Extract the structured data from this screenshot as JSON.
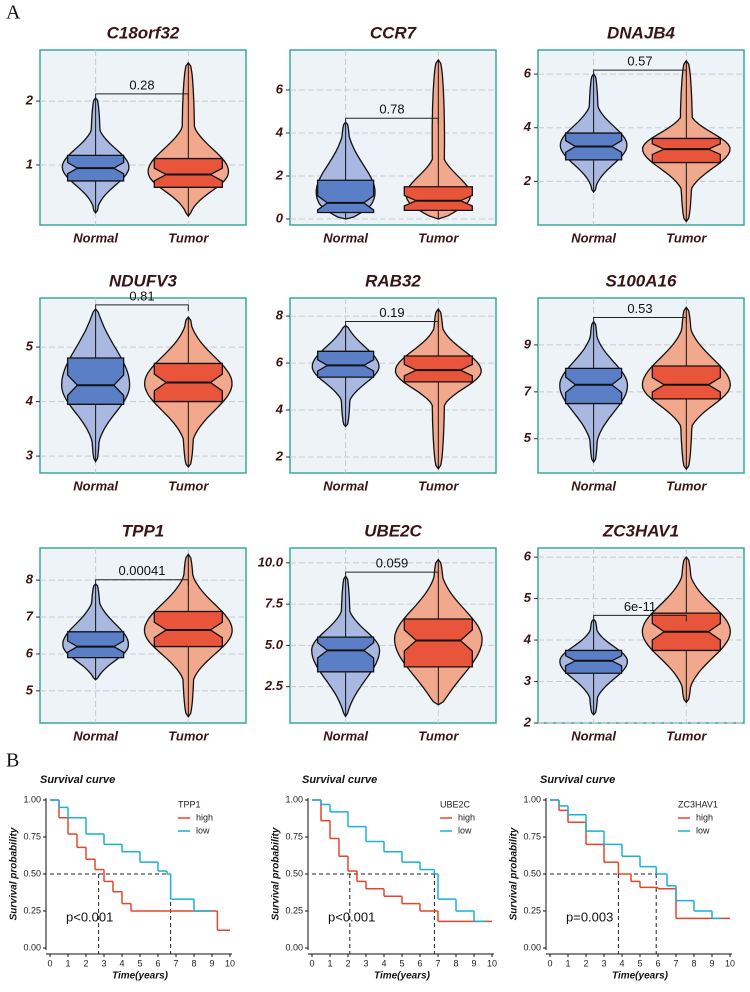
{
  "panel_labels": [
    "A",
    "B"
  ],
  "chart_data": [
    {
      "type": "violin",
      "title": "C18orf32",
      "ylim": [
        0.06,
        2.8
      ],
      "yticks": [
        1,
        2
      ],
      "p_label": "0.28",
      "series": [
        {
          "name": "Normal",
          "color": "#5b7fc6",
          "violin_color": "#a9b8e0",
          "min": 0.25,
          "q1": 0.75,
          "median": 0.95,
          "q3": 1.15,
          "max": 2.05
        },
        {
          "name": "Tumor",
          "color": "#e8553a",
          "violin_color": "#f2a88c",
          "min": 0.2,
          "q1": 0.65,
          "median": 0.85,
          "q3": 1.1,
          "max": 2.6
        }
      ]
    },
    {
      "type": "violin",
      "title": "CCR7",
      "ylim": [
        -0.28,
        7.86
      ],
      "yticks": [
        0,
        2,
        4,
        6
      ],
      "p_label": "0.78",
      "series": [
        {
          "name": "Normal",
          "color": "#5b7fc6",
          "violin_color": "#a9b8e0",
          "min": 0,
          "q1": 0.3,
          "median": 0.75,
          "q3": 1.8,
          "max": 4.5
        },
        {
          "name": "Tumor",
          "color": "#e8553a",
          "violin_color": "#f2a88c",
          "min": 0,
          "q1": 0.4,
          "median": 0.85,
          "q3": 1.5,
          "max": 7.4
        }
      ]
    },
    {
      "type": "violin",
      "title": "DNAJB4",
      "ylim": [
        0.37,
        6.9
      ],
      "yticks": [
        2,
        4,
        6
      ],
      "p_label": "0.57",
      "series": [
        {
          "name": "Normal",
          "color": "#5b7fc6",
          "violin_color": "#a9b8e0",
          "min": 1.6,
          "q1": 2.8,
          "median": 3.3,
          "q3": 3.8,
          "max": 6
        },
        {
          "name": "Tumor",
          "color": "#e8553a",
          "violin_color": "#f2a88c",
          "min": 0.5,
          "q1": 2.7,
          "median": 3.2,
          "q3": 3.6,
          "max": 6.5
        }
      ]
    },
    {
      "type": "violin",
      "title": "NDUFV3",
      "ylim": [
        2.69,
        5.9
      ],
      "yticks": [
        3,
        4,
        5
      ],
      "p_label": "0.81",
      "series": [
        {
          "name": "Normal",
          "color": "#5b7fc6",
          "violin_color": "#a9b8e0",
          "min": 2.9,
          "q1": 3.95,
          "median": 4.3,
          "q3": 4.8,
          "max": 5.7
        },
        {
          "name": "Tumor",
          "color": "#e8553a",
          "violin_color": "#f2a88c",
          "min": 2.8,
          "q1": 4.0,
          "median": 4.35,
          "q3": 4.7,
          "max": 5.55
        }
      ]
    },
    {
      "type": "violin",
      "title": "RAB32",
      "ylim": [
        1.32,
        8.77
      ],
      "yticks": [
        2,
        4,
        6,
        8
      ],
      "p_label": "0.19",
      "series": [
        {
          "name": "Normal",
          "color": "#5b7fc6",
          "violin_color": "#a9b8e0",
          "min": 3.3,
          "q1": 5.4,
          "median": 5.9,
          "q3": 6.5,
          "max": 7.6
        },
        {
          "name": "Tumor",
          "color": "#e8553a",
          "violin_color": "#f2a88c",
          "min": 1.5,
          "q1": 5.2,
          "median": 5.7,
          "q3": 6.3,
          "max": 8.3
        }
      ]
    },
    {
      "type": "violin",
      "title": "S100A16",
      "ylim": [
        3.54,
        11.0
      ],
      "yticks": [
        5,
        7,
        9
      ],
      "p_label": "0.53",
      "series": [
        {
          "name": "Normal",
          "color": "#5b7fc6",
          "violin_color": "#a9b8e0",
          "min": 4,
          "q1": 6.5,
          "median": 7.3,
          "q3": 8,
          "max": 10
        },
        {
          "name": "Tumor",
          "color": "#e8553a",
          "violin_color": "#f2a88c",
          "min": 3.7,
          "q1": 6.7,
          "median": 7.3,
          "q3": 8.1,
          "max": 10.6
        }
      ]
    },
    {
      "type": "violin",
      "title": "TPP1",
      "ylim": [
        4.13,
        8.87
      ],
      "yticks": [
        5,
        6,
        7,
        8
      ],
      "p_label": "0.00041",
      "series": [
        {
          "name": "Normal",
          "color": "#5b7fc6",
          "violin_color": "#a9b8e0",
          "min": 5.3,
          "q1": 5.9,
          "median": 6.2,
          "q3": 6.6,
          "max": 7.9
        },
        {
          "name": "Tumor",
          "color": "#e8553a",
          "violin_color": "#f2a88c",
          "min": 4.3,
          "q1": 6.2,
          "median": 6.65,
          "q3": 7.15,
          "max": 8.7
        }
      ]
    },
    {
      "type": "violin",
      "title": "UBE2C",
      "ylim": [
        0.3,
        10.9
      ],
      "yticks": [
        {
          "value": 2.5,
          "label": "2.5"
        },
        {
          "value": 5,
          "label": "5.0"
        },
        {
          "value": 7.5,
          "label": "7.5"
        },
        {
          "value": 10,
          "label": "10.0"
        }
      ],
      "p_label": "0.059",
      "series": [
        {
          "name": "Normal",
          "color": "#5b7fc6",
          "violin_color": "#a9b8e0",
          "min": 0.7,
          "q1": 3.4,
          "median": 4.7,
          "q3": 5.5,
          "max": 9.2
        },
        {
          "name": "Tumor",
          "color": "#e8553a",
          "violin_color": "#f2a88c",
          "min": 1.4,
          "q1": 3.7,
          "median": 5.3,
          "q3": 6.6,
          "max": 10.2
        }
      ]
    },
    {
      "type": "violin",
      "title": "ZC3HAV1",
      "ylim": [
        2,
        6.22
      ],
      "yticks": [
        2,
        3,
        4,
        5,
        6
      ],
      "p_label": "6e-11",
      "series": [
        {
          "name": "Normal",
          "color": "#5b7fc6",
          "violin_color": "#a9b8e0",
          "min": 2.2,
          "q1": 3.2,
          "median": 3.5,
          "q3": 3.75,
          "max": 4.5
        },
        {
          "name": "Tumor",
          "color": "#e8553a",
          "violin_color": "#f2a88c",
          "min": 2.5,
          "q1": 3.75,
          "median": 4.2,
          "q3": 4.65,
          "max": 6
        }
      ]
    },
    {
      "type": "km",
      "title": "Survival curve",
      "xlabel": "Time(years)",
      "ylabel": "Survival probability",
      "legend_title": "TPP1",
      "annotation": "p<0.001",
      "xlim": [
        0,
        10
      ],
      "xticks": [
        0,
        1,
        2,
        3,
        4,
        5,
        6,
        7,
        8,
        9,
        10
      ],
      "ylim": [
        0,
        1
      ],
      "yticks": [
        {
          "value": 0,
          "label": "0.00"
        },
        {
          "value": 0.25,
          "label": "0.25"
        },
        {
          "value": 0.5,
          "label": "0.50"
        },
        {
          "value": 0.75,
          "label": "0.75"
        },
        {
          "value": 1,
          "label": "1.00"
        }
      ],
      "median_x": [
        2.7,
        6.7
      ],
      "series": [
        {
          "name": "high",
          "color": "#e5452b",
          "x": [
            0,
            0.5,
            1,
            1.5,
            2,
            2.5,
            3,
            3.5,
            4,
            4.5,
            5,
            6,
            7,
            8,
            9,
            9.3,
            10
          ],
          "values": [
            1,
            0.88,
            0.77,
            0.68,
            0.6,
            0.53,
            0.45,
            0.38,
            0.3,
            0.25,
            0.25,
            0.25,
            0.25,
            0.25,
            0.25,
            0.12,
            0.12
          ]
        },
        {
          "name": "low",
          "color": "#1ab1d4",
          "x": [
            0,
            0.5,
            1,
            2,
            3,
            4,
            5,
            6,
            6.5,
            6.7,
            7,
            8,
            9
          ],
          "values": [
            1,
            0.95,
            0.88,
            0.77,
            0.7,
            0.65,
            0.58,
            0.52,
            0.5,
            0.33,
            0.33,
            0.25,
            0.25
          ]
        }
      ]
    },
    {
      "type": "km",
      "title": "Survival curve",
      "xlabel": "Time(years)",
      "ylabel": "Survival probability",
      "legend_title": "UBE2C",
      "annotation": "p<0.001",
      "xlim": [
        0,
        10
      ],
      "xticks": [
        0,
        1,
        2,
        3,
        4,
        5,
        6,
        7,
        8,
        9,
        10
      ],
      "ylim": [
        0,
        1
      ],
      "yticks": [
        {
          "value": 0,
          "label": "0.00"
        },
        {
          "value": 0.25,
          "label": "0.25"
        },
        {
          "value": 0.5,
          "label": "0.50"
        },
        {
          "value": 0.75,
          "label": "0.75"
        },
        {
          "value": 1,
          "label": "1.00"
        }
      ],
      "median_x": [
        2.1,
        6.8
      ],
      "series": [
        {
          "name": "high",
          "color": "#e5452b",
          "x": [
            0,
            0.5,
            1,
            1.5,
            2,
            2.5,
            3,
            4,
            5,
            6,
            7,
            8,
            9,
            10
          ],
          "values": [
            1,
            0.86,
            0.74,
            0.62,
            0.52,
            0.45,
            0.4,
            0.35,
            0.3,
            0.25,
            0.18,
            0.18,
            0.18,
            0.18
          ]
        },
        {
          "name": "low",
          "color": "#1ab1d4",
          "x": [
            0,
            0.5,
            1,
            2,
            3,
            4,
            5,
            6,
            6.8,
            7,
            8,
            9,
            9.7
          ],
          "values": [
            1,
            0.97,
            0.92,
            0.82,
            0.72,
            0.65,
            0.58,
            0.53,
            0.5,
            0.33,
            0.25,
            0.18,
            0.18
          ]
        }
      ]
    },
    {
      "type": "km",
      "title": "Survival curve",
      "xlabel": "Time(years)",
      "ylabel": "Survival probability",
      "legend_title": "ZC3HAV1",
      "annotation": "p=0.003",
      "xlim": [
        0,
        10
      ],
      "xticks": [
        0,
        1,
        2,
        3,
        4,
        5,
        6,
        7,
        8,
        9,
        10
      ],
      "ylim": [
        0,
        1
      ],
      "yticks": [
        {
          "value": 0,
          "label": "0.00"
        },
        {
          "value": 0.25,
          "label": "0.25"
        },
        {
          "value": 0.5,
          "label": "0.50"
        },
        {
          "value": 0.75,
          "label": "0.75"
        },
        {
          "value": 1,
          "label": "1.00"
        }
      ],
      "median_x": [
        3.8,
        5.9
      ],
      "series": [
        {
          "name": "high",
          "color": "#e5452b",
          "x": [
            0,
            0.5,
            1,
            2,
            3,
            3.8,
            4.5,
            5,
            6,
            7,
            8,
            9,
            10
          ],
          "values": [
            1,
            0.93,
            0.85,
            0.7,
            0.58,
            0.5,
            0.45,
            0.41,
            0.4,
            0.2,
            0.2,
            0.2,
            0.2
          ]
        },
        {
          "name": "low",
          "color": "#1ab1d4",
          "x": [
            0,
            0.5,
            1,
            2,
            3,
            4,
            5,
            5.9,
            6.5,
            7,
            8,
            9,
            9.5
          ],
          "values": [
            1,
            0.96,
            0.9,
            0.79,
            0.7,
            0.62,
            0.55,
            0.5,
            0.42,
            0.32,
            0.25,
            0.2,
            0.2
          ]
        }
      ]
    }
  ]
}
